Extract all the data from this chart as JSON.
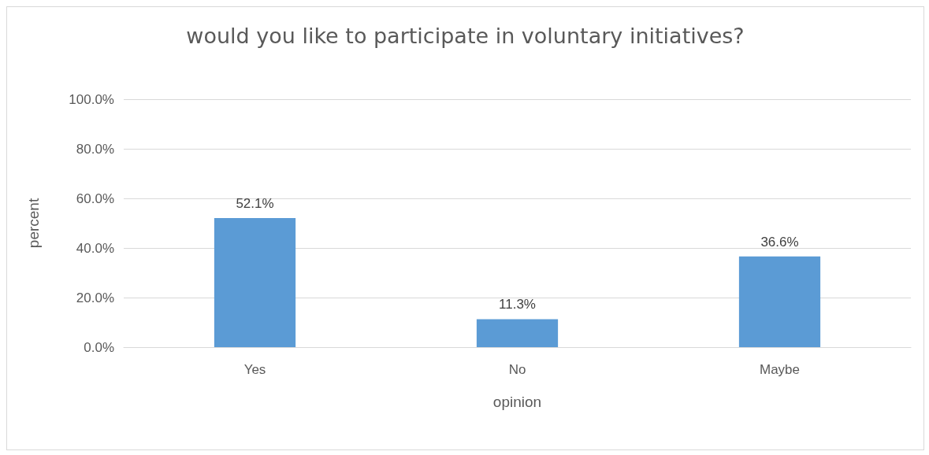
{
  "chart_data": {
    "type": "bar",
    "title": "would you like to participate in voluntary initiatives?",
    "xlabel": "opinion",
    "ylabel": "percent",
    "categories": [
      "Yes",
      "No",
      "Maybe"
    ],
    "values": [
      52.1,
      11.3,
      36.6
    ],
    "value_labels": [
      "52.1%",
      "11.3%",
      "36.6%"
    ],
    "color": "#5b9bd5",
    "ylim": [
      0,
      100
    ],
    "yticks": [
      {
        "value": 0,
        "label": "0.0%"
      },
      {
        "value": 20,
        "label": "20.0%"
      },
      {
        "value": 40,
        "label": "40.0%"
      },
      {
        "value": 60,
        "label": "60.0%"
      },
      {
        "value": 80,
        "label": "80.0%"
      },
      {
        "value": 100,
        "label": "100.0%"
      }
    ],
    "grid": "y"
  }
}
